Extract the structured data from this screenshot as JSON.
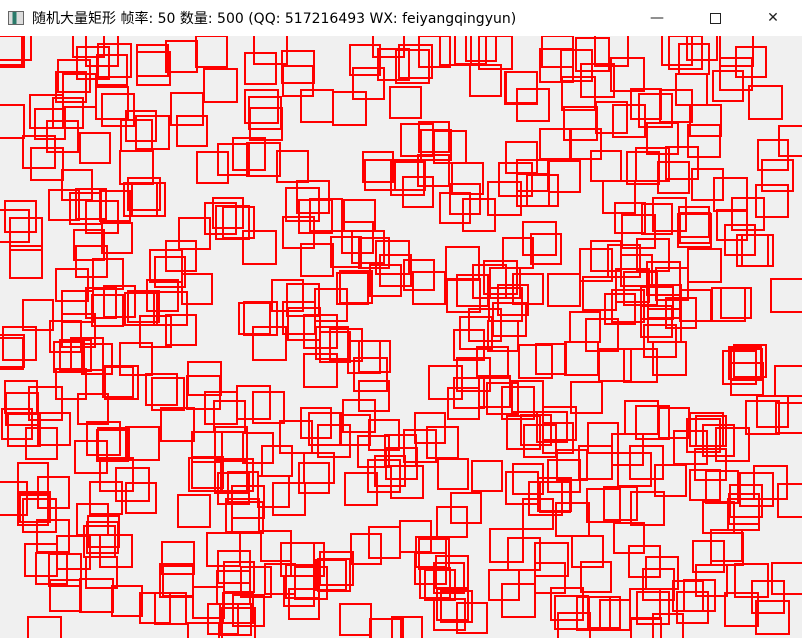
{
  "window": {
    "title": "随机大量矩形  帧率: 50  数量: 500 (QQ: 517216493 WX: feiyangqingyun)",
    "minimize_icon": "minimize-icon",
    "maximize_icon": "maximize-icon",
    "close_icon": "close-icon"
  },
  "scene": {
    "frame_rate": 50,
    "rect_count": 500,
    "rect_color": "#ff0000",
    "background": "#f0f0f0"
  }
}
